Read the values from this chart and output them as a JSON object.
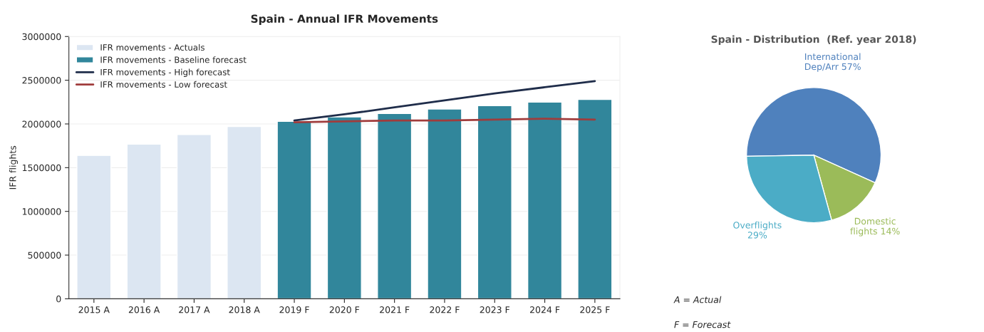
{
  "chart_data": [
    {
      "type": "bar",
      "title": "Spain - Annual IFR Movements",
      "ylabel": "IFR flights",
      "categories": [
        "2015 A",
        "2016 A",
        "2017 A",
        "2018 A",
        "2019 F",
        "2020 F",
        "2021 F",
        "2022 F",
        "2023 F",
        "2024 F",
        "2025 F"
      ],
      "series": [
        {
          "name": "IFR movements - Actuals",
          "type": "bar",
          "color": "#dce6f2",
          "values": [
            1640000,
            1770000,
            1880000,
            1970000,
            null,
            null,
            null,
            null,
            null,
            null,
            null
          ]
        },
        {
          "name": "IFR movements - Baseline forecast",
          "type": "bar",
          "color": "#31869b",
          "values": [
            null,
            null,
            null,
            null,
            2030000,
            2080000,
            2120000,
            2170000,
            2210000,
            2250000,
            2280000
          ]
        },
        {
          "name": "IFR movements - High forecast",
          "type": "line",
          "color": "#1f2d4a",
          "values": [
            null,
            null,
            null,
            null,
            2040000,
            2110000,
            2190000,
            2270000,
            2350000,
            2420000,
            2490000
          ]
        },
        {
          "name": "IFR movements - Low forecast",
          "type": "line",
          "color": "#a03c3c",
          "values": [
            null,
            null,
            null,
            null,
            2020000,
            2030000,
            2040000,
            2040000,
            2050000,
            2060000,
            2050000
          ]
        }
      ],
      "ylim": [
        0,
        3000000
      ],
      "yticks": [
        0,
        500000,
        1000000,
        1500000,
        2000000,
        2500000,
        3000000
      ],
      "grid": "y",
      "legend": "top left"
    },
    {
      "type": "pie",
      "title": "Spain - Distribution  (Ref. year 2018)",
      "categories": [
        "International Dep/Arr 57%",
        "Domestic flights 14%",
        "Overflights 29%"
      ],
      "values": [
        57,
        14,
        29
      ],
      "colors": [
        "#4f81bd",
        "#9bbb59",
        "#4bacc6"
      ],
      "annotations": [
        "A = Actual",
        "F = Forecast"
      ]
    }
  ]
}
